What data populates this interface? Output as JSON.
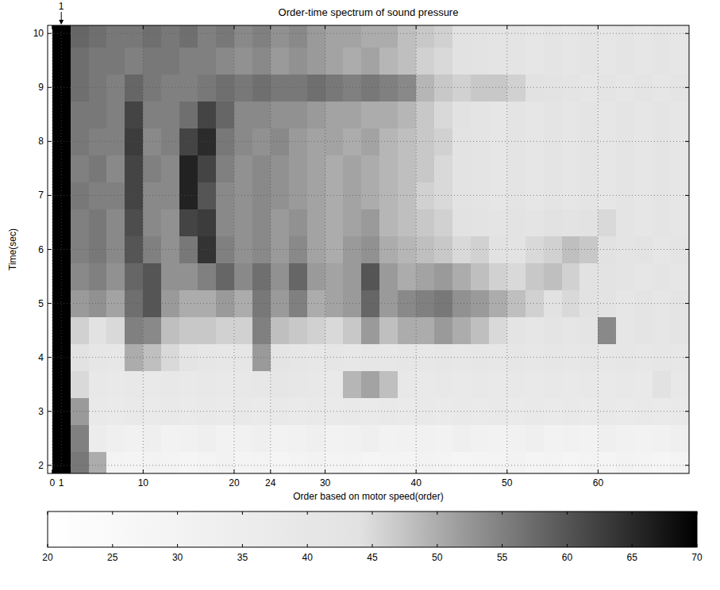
{
  "chart_data": {
    "type": "heatmap",
    "title": "Order-time spectrum of sound pressure",
    "x_label": "Order based on motor speed(order)",
    "y_label": "Time(sec)",
    "xlim": [
      -0.5,
      70
    ],
    "ylim": [
      1.85,
      10.15
    ],
    "xticks": [
      0,
      1,
      10,
      20,
      24,
      30,
      40,
      50,
      60
    ],
    "yticks": [
      2,
      3,
      4,
      5,
      6,
      7,
      8,
      9,
      10
    ],
    "grid": true,
    "annotations": [
      {
        "text": "1",
        "x": 1
      }
    ],
    "x_bins": [
      0,
      2,
      4,
      6,
      8,
      10,
      12,
      14,
      16,
      18,
      20,
      22,
      24,
      26,
      28,
      30,
      32,
      34,
      36,
      38,
      40,
      42,
      44,
      46,
      48,
      50,
      52,
      54,
      56,
      58,
      60,
      62,
      64,
      66,
      68,
      70
    ],
    "y_bins": [
      1.75,
      2.25,
      2.75,
      3.25,
      3.75,
      4.25,
      4.75,
      5.25,
      5.75,
      6.25,
      6.75,
      7.25,
      7.75,
      8.25,
      8.75,
      9.25,
      9.75,
      10.25
    ],
    "z": [
      [
        70,
        56,
        50,
        30,
        29,
        31,
        30,
        28,
        30,
        31,
        29,
        30,
        28,
        30,
        31,
        29,
        30,
        28,
        30,
        29,
        31,
        30,
        28,
        29,
        30,
        31,
        29,
        30,
        28,
        30,
        29,
        31,
        30,
        28,
        30
      ],
      [
        70,
        55,
        36,
        33,
        32,
        33,
        31,
        32,
        33,
        31,
        32,
        33,
        31,
        32,
        33,
        31,
        32,
        33,
        31,
        32,
        32,
        31,
        33,
        32,
        31,
        32,
        33,
        31,
        32,
        31,
        33,
        32,
        31,
        32,
        33
      ],
      [
        70,
        52,
        38,
        37,
        38,
        37,
        38,
        37,
        38,
        37,
        38,
        37,
        38,
        37,
        38,
        37,
        38,
        37,
        38,
        37,
        38,
        37,
        38,
        37,
        38,
        37,
        38,
        37,
        38,
        37,
        38,
        37,
        38,
        37,
        38
      ],
      [
        70,
        45,
        39,
        38,
        39,
        38,
        39,
        38,
        39,
        38,
        39,
        40,
        41,
        40,
        39,
        38,
        49,
        51,
        48,
        39,
        38,
        39,
        38,
        39,
        38,
        39,
        38,
        39,
        38,
        39,
        38,
        39,
        38,
        44,
        39
      ],
      [
        70,
        44,
        41,
        40,
        50,
        48,
        45,
        42,
        41,
        40,
        41,
        52,
        42,
        41,
        40,
        41,
        40,
        41,
        40,
        41,
        40,
        41,
        40,
        41,
        40,
        41,
        40,
        41,
        40,
        41,
        40,
        41,
        40,
        41,
        40
      ],
      [
        70,
        46,
        44,
        45,
        55,
        54,
        48,
        47,
        47,
        46,
        46,
        55,
        48,
        47,
        46,
        45,
        47,
        52,
        48,
        50,
        50,
        52,
        50,
        48,
        45,
        42,
        41,
        42,
        41,
        42,
        54,
        41,
        42,
        41,
        42
      ],
      [
        70,
        52,
        53,
        51,
        57,
        60,
        52,
        50,
        50,
        52,
        50,
        56,
        52,
        55,
        50,
        51,
        52,
        58,
        52,
        54,
        55,
        56,
        53,
        52,
        50,
        48,
        46,
        44,
        45,
        44,
        43,
        41,
        42,
        41,
        42
      ],
      [
        70,
        54,
        55,
        53,
        58,
        60,
        53,
        53,
        55,
        58,
        54,
        57,
        53,
        58,
        52,
        51,
        52,
        60,
        52,
        50,
        51,
        52,
        50,
        48,
        46,
        45,
        47,
        48,
        46,
        44,
        43,
        42,
        41,
        42,
        41
      ],
      [
        70,
        55,
        56,
        54,
        60,
        55,
        53,
        56,
        64,
        55,
        53,
        54,
        52,
        54,
        51,
        50,
        52,
        53,
        50,
        49,
        48,
        47,
        45,
        46,
        44,
        43,
        45,
        46,
        48,
        47,
        44,
        42,
        43,
        41,
        42
      ],
      [
        70,
        55,
        56,
        54,
        61,
        54,
        53,
        62,
        63,
        54,
        53,
        54,
        52,
        53,
        51,
        50,
        51,
        52,
        49,
        48,
        47,
        46,
        44,
        43,
        42,
        43,
        42,
        44,
        43,
        44,
        45,
        42,
        41,
        42,
        41
      ],
      [
        70,
        56,
        55,
        55,
        62,
        54,
        54,
        66,
        60,
        54,
        53,
        54,
        53,
        52,
        51,
        50,
        51,
        50,
        49,
        48,
        46,
        45,
        43,
        42,
        41,
        42,
        41,
        42,
        41,
        42,
        41,
        42,
        41,
        42,
        41
      ],
      [
        70,
        55,
        56,
        54,
        62,
        55,
        54,
        66,
        62,
        55,
        53,
        54,
        53,
        52,
        51,
        50,
        51,
        50,
        49,
        48,
        47,
        45,
        43,
        42,
        41,
        42,
        41,
        42,
        41,
        42,
        41,
        42,
        41,
        42,
        41
      ],
      [
        70,
        56,
        55,
        55,
        63,
        54,
        55,
        62,
        65,
        56,
        54,
        53,
        54,
        52,
        51,
        51,
        50,
        51,
        49,
        48,
        47,
        46,
        43,
        42,
        41,
        42,
        41,
        42,
        41,
        42,
        41,
        42,
        41,
        42,
        41
      ],
      [
        70,
        56,
        56,
        55,
        62,
        55,
        55,
        57,
        62,
        58,
        54,
        54,
        53,
        53,
        52,
        51,
        51,
        50,
        50,
        49,
        47,
        45,
        44,
        42,
        41,
        42,
        41,
        42,
        41,
        42,
        41,
        42,
        41,
        42,
        41
      ],
      [
        70,
        57,
        56,
        55,
        58,
        56,
        55,
        55,
        56,
        57,
        56,
        57,
        56,
        56,
        57,
        56,
        55,
        56,
        55,
        54,
        49,
        47,
        46,
        47,
        47,
        46,
        44,
        43,
        42,
        41,
        42,
        41,
        42,
        41,
        42
      ],
      [
        70,
        57,
        56,
        56,
        55,
        56,
        56,
        55,
        55,
        54,
        53,
        54,
        52,
        53,
        52,
        51,
        50,
        51,
        49,
        48,
        46,
        45,
        44,
        43,
        42,
        42,
        41,
        42,
        41,
        42,
        41,
        42,
        41,
        42,
        41
      ],
      [
        70,
        58,
        57,
        56,
        56,
        57,
        56,
        57,
        55,
        56,
        54,
        55,
        53,
        54,
        52,
        51,
        51,
        50,
        50,
        48,
        47,
        46,
        44,
        43,
        42,
        42,
        41,
        42,
        41,
        42,
        41,
        42,
        41,
        42,
        41
      ]
    ],
    "colorbar": {
      "range": [
        20,
        70
      ],
      "ticks": [
        20,
        25,
        30,
        35,
        40,
        45,
        50,
        55,
        60,
        65,
        70
      ]
    }
  }
}
